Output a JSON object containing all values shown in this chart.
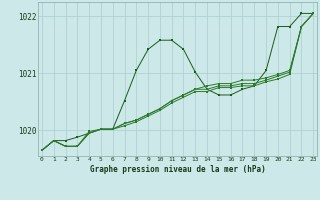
{
  "title": "Graphe pression niveau de la mer (hPa)",
  "bg_color": "#cce8e8",
  "grid_color": "#aacece",
  "line_color_dark": "#1a5c1a",
  "line_color_mid": "#2d7a2d",
  "xmin": 0,
  "xmax": 23,
  "ymin": 1019.55,
  "ymax": 1022.25,
  "yticks": [
    1020,
    1021,
    1022
  ],
  "series": [
    [
      1019.65,
      1019.82,
      1019.82,
      1019.88,
      1019.95,
      1020.02,
      1020.02,
      1020.52,
      1021.05,
      1021.42,
      1021.58,
      1021.58,
      1021.42,
      1021.02,
      1020.72,
      1020.62,
      1020.62,
      1020.72,
      1020.78,
      1021.05,
      1021.82,
      1021.82,
      1022.05,
      1022.05
    ],
    [
      1019.65,
      1019.82,
      1019.72,
      1019.72,
      1019.98,
      1020.02,
      1020.02,
      1020.12,
      1020.18,
      1020.28,
      1020.38,
      1020.52,
      1020.62,
      1020.72,
      1020.78,
      1020.82,
      1020.82,
      1020.88,
      1020.88,
      1020.92,
      1020.98,
      1021.05,
      1021.82,
      1022.05
    ],
    [
      1019.65,
      1019.82,
      1019.72,
      1019.72,
      1019.95,
      1020.02,
      1020.02,
      1020.12,
      1020.18,
      1020.28,
      1020.38,
      1020.52,
      1020.62,
      1020.72,
      1020.72,
      1020.78,
      1020.78,
      1020.82,
      1020.82,
      1020.88,
      1020.95,
      1021.02,
      1021.82,
      1022.05
    ],
    [
      1019.65,
      1019.82,
      1019.72,
      1019.72,
      1019.95,
      1020.02,
      1020.02,
      1020.08,
      1020.15,
      1020.25,
      1020.35,
      1020.48,
      1020.58,
      1020.68,
      1020.68,
      1020.75,
      1020.75,
      1020.78,
      1020.78,
      1020.85,
      1020.9,
      1020.98,
      1021.82,
      1022.05
    ]
  ]
}
